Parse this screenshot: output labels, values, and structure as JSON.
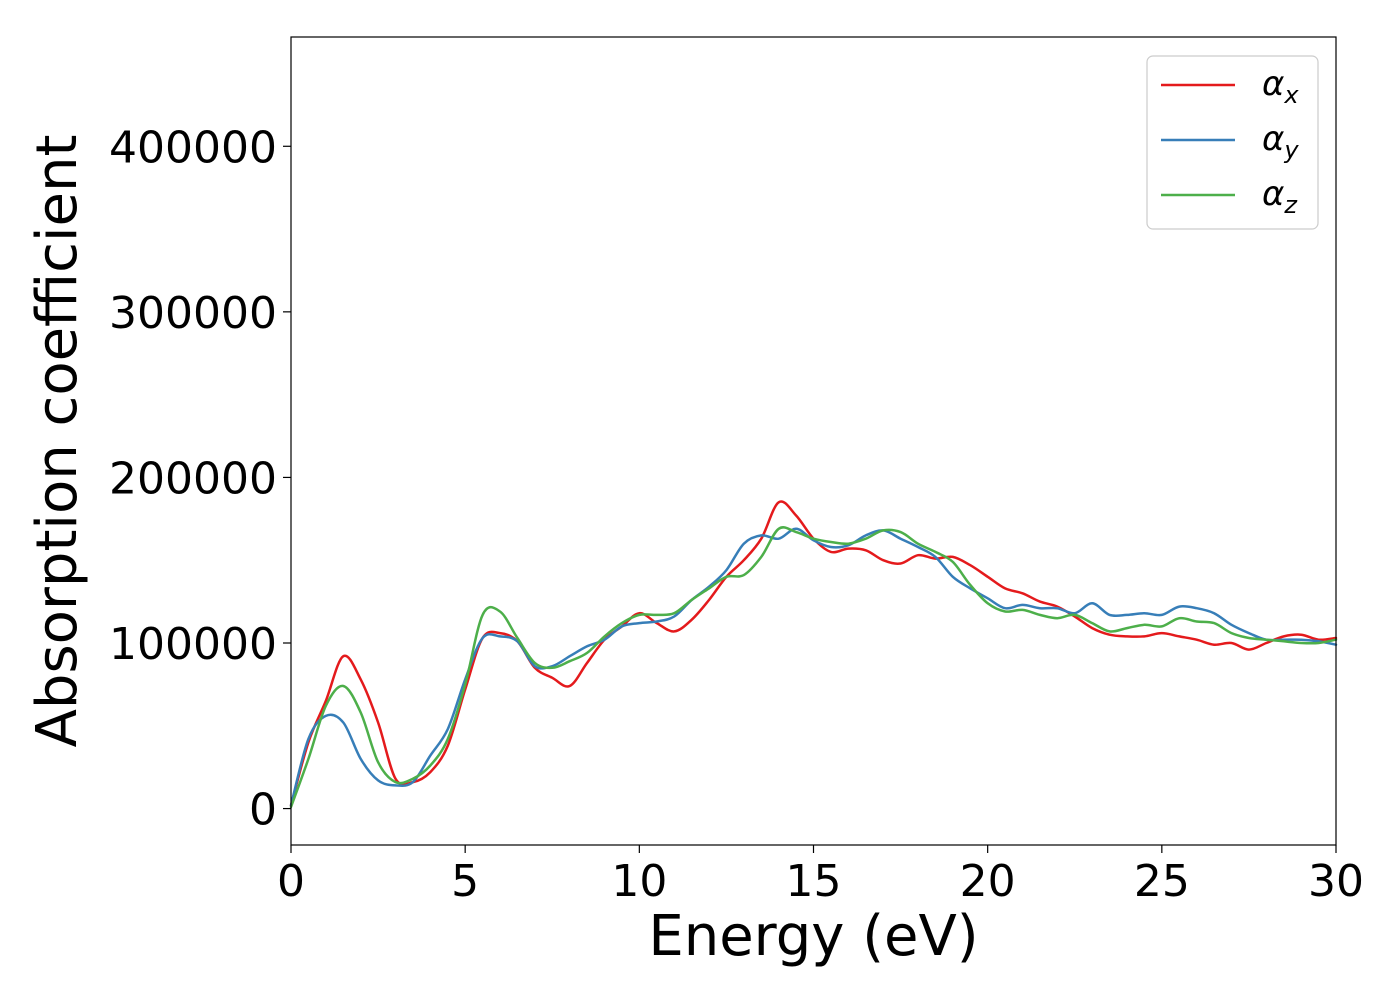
{
  "chart_data": {
    "type": "line",
    "title": "",
    "xlabel": "Energy (eV)",
    "ylabel": "Absorption coefficient",
    "xlim": [
      0,
      30
    ],
    "ylim": [
      -22000,
      466000
    ],
    "xticks": [
      0,
      5,
      10,
      15,
      20,
      25,
      30
    ],
    "xtick_labels": [
      "0",
      "5",
      "10",
      "15",
      "20",
      "25",
      "30"
    ],
    "yticks": [
      0,
      100000,
      200000,
      300000,
      400000
    ],
    "ytick_labels": [
      "0",
      "100000",
      "200000",
      "300000",
      "400000"
    ],
    "grid": false,
    "legend": {
      "position": "top-right"
    },
    "series": [
      {
        "name": "α",
        "name_sub": "x",
        "color": "#e41a1c",
        "x": [
          0,
          0.5,
          1.0,
          1.5,
          2.0,
          2.5,
          3.0,
          3.5,
          4.0,
          4.5,
          5.0,
          5.5,
          6.0,
          6.5,
          7.0,
          7.5,
          8.0,
          8.5,
          9.0,
          9.5,
          10.0,
          10.5,
          11.0,
          11.5,
          12.0,
          12.5,
          13.0,
          13.5,
          14.0,
          14.5,
          15.0,
          15.5,
          16.0,
          16.5,
          17.0,
          17.5,
          18.0,
          18.5,
          19.0,
          19.5,
          20.0,
          20.5,
          21.0,
          21.5,
          22.0,
          22.5,
          23.0,
          23.5,
          24.0,
          24.5,
          25.0,
          25.5,
          26.0,
          26.5,
          27.0,
          27.5,
          28.0,
          28.5,
          29.0,
          29.5,
          30.0
        ],
        "y": [
          2000,
          40000,
          65000,
          92000,
          78000,
          52000,
          18000,
          16000,
          22000,
          38000,
          72000,
          103000,
          106000,
          101000,
          85000,
          79000,
          74000,
          88000,
          102000,
          110000,
          118000,
          112000,
          107000,
          114000,
          126000,
          140000,
          150000,
          163000,
          185000,
          177000,
          163000,
          155000,
          157000,
          156000,
          150000,
          148000,
          153000,
          151000,
          152000,
          147000,
          140000,
          133000,
          130000,
          125000,
          122000,
          116000,
          109000,
          105000,
          104000,
          104000,
          106000,
          104000,
          102000,
          99000,
          100000,
          96000,
          100000,
          104000,
          105000,
          102000,
          103000
        ]
      },
      {
        "name": "α",
        "name_sub": "y",
        "color": "#377eb8",
        "x": [
          0,
          0.5,
          1.0,
          1.5,
          2.0,
          2.5,
          3.0,
          3.5,
          4.0,
          4.5,
          5.0,
          5.5,
          6.0,
          6.5,
          7.0,
          7.5,
          8.0,
          8.5,
          9.0,
          9.5,
          10.0,
          10.5,
          11.0,
          11.5,
          12.0,
          12.5,
          13.0,
          13.5,
          14.0,
          14.5,
          15.0,
          15.5,
          16.0,
          16.5,
          17.0,
          17.5,
          18.0,
          18.5,
          19.0,
          19.5,
          20.0,
          20.5,
          21.0,
          21.5,
          22.0,
          22.5,
          23.0,
          23.5,
          24.0,
          24.5,
          25.0,
          25.5,
          26.0,
          26.5,
          27.0,
          27.5,
          28.0,
          28.5,
          29.0,
          29.5,
          30.0
        ],
        "y": [
          2000,
          42000,
          56000,
          52000,
          30000,
          17000,
          14000,
          16000,
          32000,
          48000,
          78000,
          103000,
          104000,
          101000,
          86000,
          86000,
          92000,
          98000,
          102000,
          110000,
          112000,
          113000,
          116000,
          126000,
          134000,
          144000,
          160000,
          165000,
          163000,
          169000,
          162000,
          158000,
          159000,
          165000,
          168000,
          163000,
          158000,
          152000,
          140000,
          133000,
          127000,
          121000,
          123000,
          121000,
          121000,
          118000,
          124000,
          117000,
          117000,
          118000,
          117000,
          122000,
          121000,
          118000,
          111000,
          106000,
          102000,
          102000,
          102000,
          101000,
          99000
        ]
      },
      {
        "name": "α",
        "name_sub": "z",
        "color": "#4daf4a",
        "x": [
          0,
          0.5,
          1.0,
          1.5,
          2.0,
          2.5,
          3.0,
          3.5,
          4.0,
          4.5,
          5.0,
          5.5,
          6.0,
          6.5,
          7.0,
          7.5,
          8.0,
          8.5,
          9.0,
          9.5,
          10.0,
          10.5,
          11.0,
          11.5,
          12.0,
          12.5,
          13.0,
          13.5,
          14.0,
          14.5,
          15.0,
          15.5,
          16.0,
          16.5,
          17.0,
          17.5,
          18.0,
          18.5,
          19.0,
          19.5,
          20.0,
          20.5,
          21.0,
          21.5,
          22.0,
          22.5,
          23.0,
          23.5,
          24.0,
          24.5,
          25.0,
          25.5,
          26.0,
          26.5,
          27.0,
          27.5,
          28.0,
          28.5,
          29.0,
          29.5,
          30.0
        ],
        "y": [
          1000,
          30000,
          62000,
          74000,
          58000,
          28000,
          16000,
          18000,
          26000,
          42000,
          75000,
          117000,
          119000,
          103000,
          88000,
          85000,
          89000,
          94000,
          104000,
          112000,
          117000,
          117000,
          118000,
          126000,
          133000,
          140000,
          141000,
          152000,
          169000,
          167000,
          163000,
          161000,
          160000,
          163000,
          168000,
          167000,
          160000,
          155000,
          149000,
          135000,
          124000,
          119000,
          120000,
          117000,
          115000,
          117000,
          112000,
          107000,
          109000,
          111000,
          110000,
          115000,
          113000,
          112000,
          106000,
          103000,
          102000,
          101000,
          100000,
          100000,
          102000
        ]
      }
    ]
  }
}
